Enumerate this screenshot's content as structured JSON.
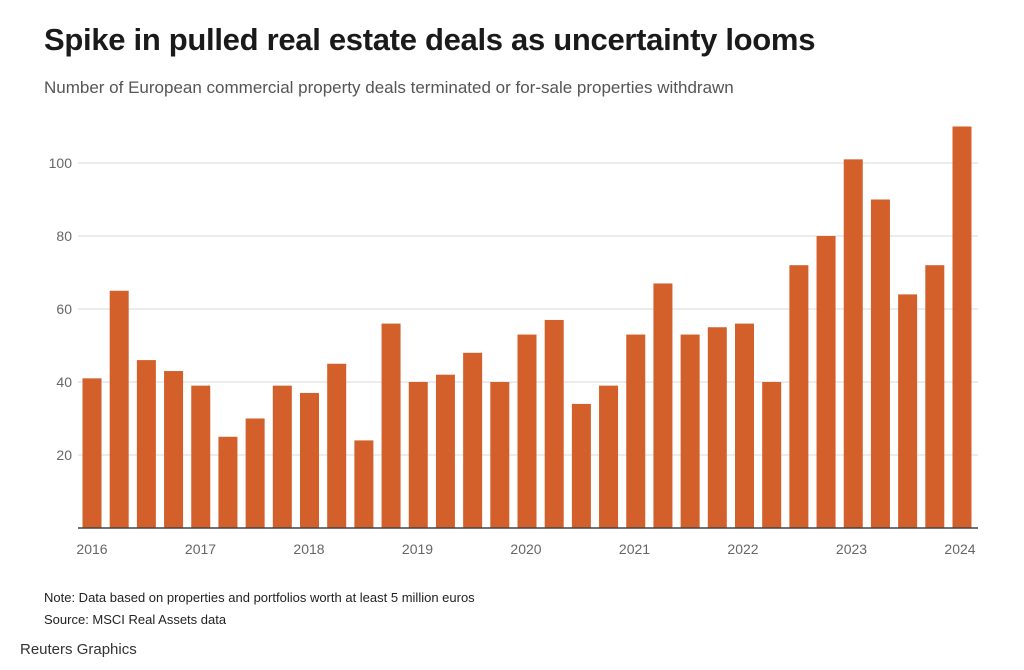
{
  "header": {
    "title": "Spike in pulled real estate deals as uncertainty looms",
    "subtitle": "Number of European commercial property deals terminated or for-sale properties withdrawn"
  },
  "footer": {
    "note": "Note: Data based on properties and portfolios worth at least 5 million euros",
    "source": "Source: MSCI Real Assets data",
    "credit": "Reuters Graphics"
  },
  "chart_data": {
    "type": "bar",
    "title": "Spike in pulled real estate deals as uncertainty looms",
    "subtitle": "Number of European commercial property deals terminated or for-sale properties withdrawn",
    "xlabel": "",
    "ylabel": "",
    "ylim": [
      0,
      110
    ],
    "yticks": [
      20,
      40,
      60,
      80,
      100
    ],
    "xticks": [
      "2016",
      "2017",
      "2018",
      "2019",
      "2020",
      "2021",
      "2022",
      "2023",
      "2024"
    ],
    "grid": true,
    "bar_color": "#d35f2a",
    "values": [
      41,
      65,
      46,
      43,
      39,
      25,
      30,
      39,
      37,
      45,
      24,
      56,
      40,
      42,
      48,
      40,
      53,
      57,
      34,
      39,
      53,
      67,
      53,
      55,
      56,
      40,
      72,
      80,
      101,
      90,
      64,
      72,
      110
    ]
  }
}
